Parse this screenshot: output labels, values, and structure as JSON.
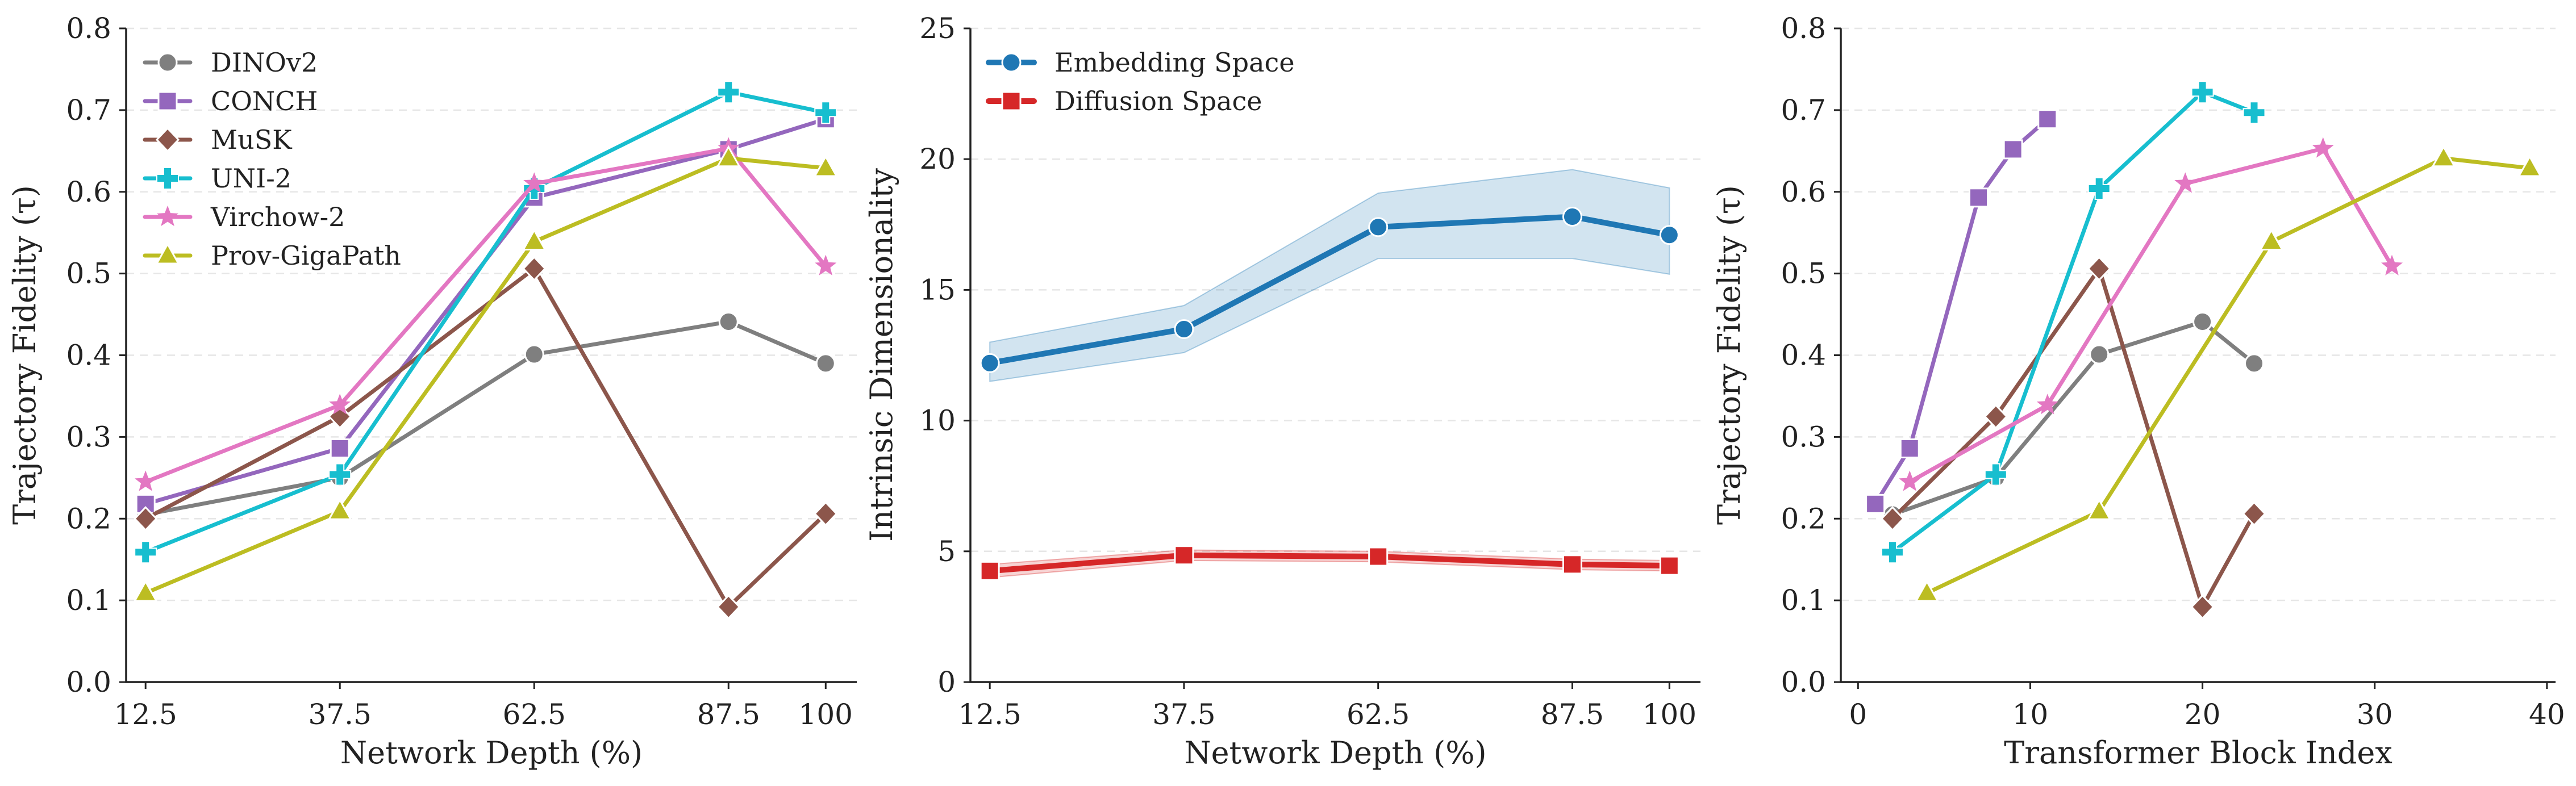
{
  "chart_data": [
    {
      "type": "line",
      "title": "",
      "xlabel": "Network Depth (%)",
      "ylabel": "Trajectory Fidelity (τ)",
      "x": [
        12.5,
        37.5,
        62.5,
        87.5,
        100
      ],
      "xticks": [
        "12.5",
        "37.5",
        "62.5",
        "87.5",
        "100"
      ],
      "xlim": [
        10,
        104
      ],
      "ylim": [
        0,
        0.8
      ],
      "yticks": [
        "0.0",
        "0.1",
        "0.2",
        "0.3",
        "0.4",
        "0.5",
        "0.6",
        "0.7",
        "0.8"
      ],
      "grid": "horizontal-dashed",
      "legend_position": "top-left",
      "series": [
        {
          "name": "DINOv2",
          "color": "#7f7f7f",
          "marker": "circle",
          "values": [
            0.205,
            0.25,
            0.401,
            0.441,
            0.39
          ]
        },
        {
          "name": "CONCH",
          "color": "#9467bd",
          "marker": "square",
          "values": [
            0.218,
            0.286,
            0.593,
            0.652,
            0.689
          ]
        },
        {
          "name": "MuSK",
          "color": "#8c564b",
          "marker": "diamond",
          "values": [
            0.2,
            0.325,
            0.506,
            0.092,
            0.206
          ]
        },
        {
          "name": "UNI-2",
          "color": "#17becf",
          "marker": "plus",
          "values": [
            0.159,
            0.254,
            0.604,
            0.722,
            0.697
          ]
        },
        {
          "name": "Virchow-2",
          "color": "#e377c2",
          "marker": "star",
          "values": [
            0.245,
            0.339,
            0.61,
            0.653,
            0.509
          ]
        },
        {
          "name": "Prov-GigaPath",
          "color": "#bcbd22",
          "marker": "triangle",
          "values": [
            0.109,
            0.209,
            0.539,
            0.641,
            0.629
          ]
        }
      ]
    },
    {
      "type": "line",
      "title": "",
      "xlabel": "Network Depth (%)",
      "ylabel": "Intrinsic Dimensionality",
      "x": [
        12.5,
        37.5,
        62.5,
        87.5,
        100
      ],
      "xticks": [
        "12.5",
        "37.5",
        "62.5",
        "87.5",
        "100"
      ],
      "xlim": [
        10,
        104
      ],
      "ylim": [
        0,
        25
      ],
      "yticks": [
        "0",
        "5",
        "10",
        "15",
        "20",
        "25"
      ],
      "grid": "horizontal-dashed",
      "legend_position": "top-left",
      "series": [
        {
          "name": "Embedding Space",
          "color": "#1f77b4",
          "marker": "circle",
          "values": [
            12.2,
            13.5,
            17.4,
            17.8,
            17.1
          ],
          "band_low": [
            11.5,
            12.6,
            16.2,
            16.2,
            15.6
          ],
          "band_high": [
            13.0,
            14.4,
            18.7,
            19.6,
            18.9
          ]
        },
        {
          "name": "Diffusion Space",
          "color": "#d62728",
          "marker": "square",
          "values": [
            4.25,
            4.85,
            4.8,
            4.5,
            4.45
          ],
          "band_low": [
            4.0,
            4.65,
            4.6,
            4.3,
            4.25
          ],
          "band_high": [
            4.5,
            5.05,
            5.0,
            4.7,
            4.65
          ]
        }
      ]
    },
    {
      "type": "line",
      "title": "",
      "xlabel": "Transformer Block Index",
      "ylabel": "Trajectory Fidelity (τ)",
      "xlim": [
        -1,
        40.5
      ],
      "xticks": [
        "0",
        "10",
        "20",
        "30",
        "40"
      ],
      "xtick_values": [
        0,
        10,
        20,
        30,
        40
      ],
      "ylim": [
        0,
        0.8
      ],
      "yticks": [
        "0.0",
        "0.1",
        "0.2",
        "0.3",
        "0.4",
        "0.5",
        "0.6",
        "0.7",
        "0.8"
      ],
      "grid": "horizontal-dashed",
      "series": [
        {
          "name": "DINOv2",
          "color": "#7f7f7f",
          "marker": "circle",
          "x": [
            2,
            8,
            14,
            20,
            23
          ],
          "values": [
            0.205,
            0.25,
            0.401,
            0.441,
            0.39
          ]
        },
        {
          "name": "CONCH",
          "color": "#9467bd",
          "marker": "square",
          "x": [
            1,
            3,
            7,
            9,
            11
          ],
          "values": [
            0.218,
            0.286,
            0.593,
            0.652,
            0.689
          ]
        },
        {
          "name": "MuSK",
          "color": "#8c564b",
          "marker": "diamond",
          "x": [
            2,
            8,
            14,
            20,
            23
          ],
          "values": [
            0.2,
            0.325,
            0.506,
            0.092,
            0.206
          ]
        },
        {
          "name": "UNI-2",
          "color": "#17becf",
          "marker": "plus",
          "x": [
            2,
            8,
            14,
            20,
            23
          ],
          "values": [
            0.159,
            0.254,
            0.604,
            0.722,
            0.697
          ]
        },
        {
          "name": "Virchow-2",
          "color": "#e377c2",
          "marker": "star",
          "x": [
            3,
            11,
            19,
            27,
            31
          ],
          "values": [
            0.245,
            0.339,
            0.61,
            0.653,
            0.509
          ]
        },
        {
          "name": "Prov-GigaPath",
          "color": "#bcbd22",
          "marker": "triangle",
          "x": [
            4,
            14,
            24,
            34,
            39
          ],
          "values": [
            0.109,
            0.209,
            0.539,
            0.641,
            0.629
          ]
        }
      ]
    }
  ]
}
